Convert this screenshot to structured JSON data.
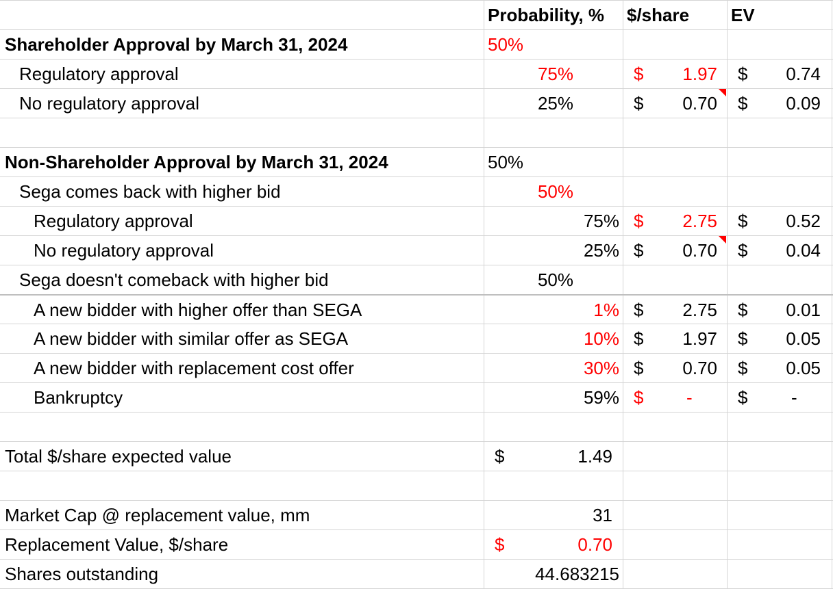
{
  "headers": {
    "probability": "Probability, %",
    "per_share": "$/share",
    "ev": "EV"
  },
  "currency": "$",
  "rows": [
    {
      "label": "Shareholder Approval by March 31, 2024",
      "prob_a": "50%"
    },
    {
      "label": "Regulatory approval",
      "prob_b": "75%",
      "price": "1.97",
      "ev": "0.74"
    },
    {
      "label": "No regulatory approval",
      "prob_b": "25%",
      "price": "0.70",
      "ev": "0.09"
    },
    {
      "label": "Non-Shareholder Approval by March 31, 2024",
      "prob_a": "50%"
    },
    {
      "label": "Sega comes back with higher bid",
      "prob_b": "50%"
    },
    {
      "label": "Regulatory approval",
      "prob_c": "75%",
      "price": "2.75",
      "ev": "0.52"
    },
    {
      "label": "No regulatory approval",
      "prob_c": "25%",
      "price": "0.70",
      "ev": "0.04"
    },
    {
      "label": "Sega doesn't comeback with higher bid",
      "prob_b": "50%"
    },
    {
      "label": "A new bidder with higher offer than SEGA",
      "prob_c": "1%",
      "price": "2.75",
      "ev": "0.01"
    },
    {
      "label": "A new bidder with similar offer as SEGA",
      "prob_c": "10%",
      "price": "1.97",
      "ev": "0.05"
    },
    {
      "label": "A new bidder with replacement cost offer",
      "prob_c": "30%",
      "price": "0.70",
      "ev": "0.05"
    },
    {
      "label": "Bankruptcy",
      "prob_c": "59%",
      "price": "-",
      "ev": "-"
    },
    {
      "label": "Total $/share expected value",
      "value": "1.49"
    },
    {
      "label": "Market Cap @ replacement value, mm",
      "value": "31"
    },
    {
      "label": "Replacement Value, $/share",
      "value": "0.70"
    },
    {
      "label": "Shares outstanding",
      "value": "44.683215"
    }
  ],
  "colors": {
    "highlight": "#ff0000",
    "gridline": "#d4d4d4"
  }
}
